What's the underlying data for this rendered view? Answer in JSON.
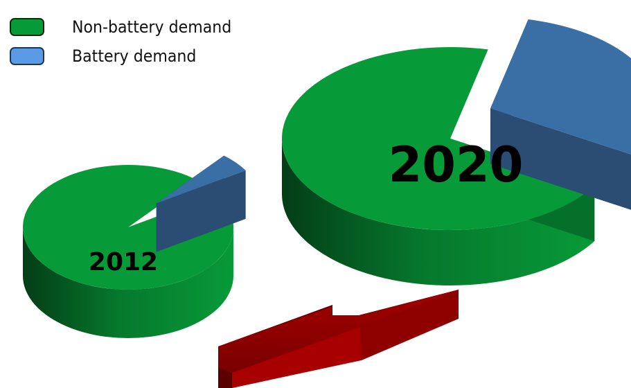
{
  "chart_data": {
    "type": "pie",
    "series_labels": [
      "Non-battery demand",
      "Battery demand"
    ],
    "colors": {
      "non_battery": "#079a38",
      "non_battery_side": "#05702a",
      "battery_top": "#3a6fa5",
      "battery_side": "#1e3a5f",
      "battery_legend": "#5b9be6",
      "arrow": "#8b0000",
      "arrow_dark": "#5e0000"
    },
    "pies": [
      {
        "label": "2012",
        "values": [
          95,
          5
        ]
      },
      {
        "label": "2020",
        "values": [
          70,
          30
        ]
      }
    ]
  },
  "legend": {
    "items": [
      {
        "label": "Non-battery demand",
        "color": "#079a38"
      },
      {
        "label": "Battery demand",
        "color": "#5b9be6"
      }
    ]
  }
}
